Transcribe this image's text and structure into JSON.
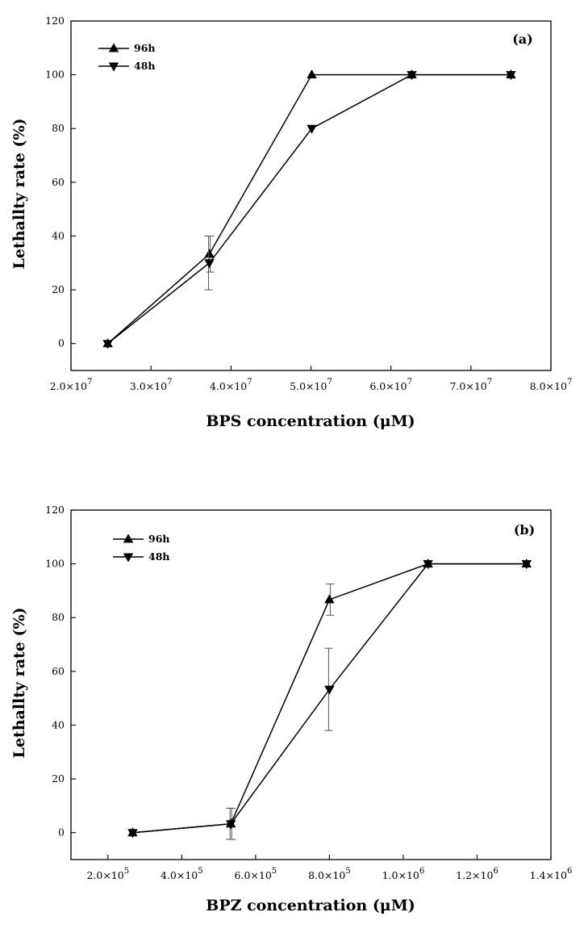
{
  "chart_data": [
    {
      "type": "line",
      "panel_label": "(a)",
      "xlabel": "BPS concentration (μM)",
      "ylabel": "Lethallty rate (%)",
      "xlim": [
        20000000,
        80000000
      ],
      "ylim": [
        -10,
        120
      ],
      "x_ticks": [
        20000000,
        30000000,
        40000000,
        50000000,
        60000000,
        70000000,
        80000000
      ],
      "x_tick_labels": [
        {
          "mantissa": "2.0×10",
          "exp": "7"
        },
        {
          "mantissa": "3.0×10",
          "exp": "7"
        },
        {
          "mantissa": "4.0×10",
          "exp": "7"
        },
        {
          "mantissa": "5.0×10",
          "exp": "7"
        },
        {
          "mantissa": "6.0×10",
          "exp": "7"
        },
        {
          "mantissa": "7.0×10",
          "exp": "7"
        },
        {
          "mantissa": "8.0×10",
          "exp": "7"
        }
      ],
      "y_ticks": [
        0,
        20,
        40,
        60,
        80,
        100,
        120
      ],
      "y_tick_labels": [
        "0",
        "20",
        "40",
        "60",
        "80",
        "100",
        "120"
      ],
      "legend_position": "top-left",
      "series": [
        {
          "name": "96h",
          "marker": "triangle-up",
          "x": [
            24600000,
            37300000,
            50100000,
            62600000,
            75000000
          ],
          "values": [
            0,
            33.3,
            100,
            100,
            100
          ],
          "errors": [
            0,
            6.7,
            0,
            0,
            0
          ]
        },
        {
          "name": "48h",
          "marker": "triangle-down",
          "x": [
            24600000,
            37300000,
            50100000,
            62600000,
            75000000
          ],
          "values": [
            0,
            30,
            80,
            100,
            100
          ],
          "errors": [
            0,
            10,
            0,
            0,
            0
          ]
        }
      ]
    },
    {
      "type": "line",
      "panel_label": "(b)",
      "xlabel": "BPZ concentration (μM)",
      "ylabel": "Lethallty rate (%)",
      "xlim": [
        100000,
        1400000
      ],
      "ylim": [
        -10,
        120
      ],
      "x_ticks": [
        200000,
        400000,
        600000,
        800000,
        1000000,
        1200000,
        1400000
      ],
      "x_tick_labels": [
        {
          "mantissa": "2.0×10",
          "exp": "5"
        },
        {
          "mantissa": "4.0×10",
          "exp": "5"
        },
        {
          "mantissa": "6.0×10",
          "exp": "5"
        },
        {
          "mantissa": "8.0×10",
          "exp": "5"
        },
        {
          "mantissa": "1.0×10",
          "exp": "6"
        },
        {
          "mantissa": "1.2×10",
          "exp": "6"
        },
        {
          "mantissa": "1.4×10",
          "exp": "6"
        }
      ],
      "y_ticks": [
        0,
        20,
        40,
        60,
        80,
        100,
        120
      ],
      "y_tick_labels": [
        "0",
        "20",
        "40",
        "60",
        "80",
        "100",
        "120"
      ],
      "legend_position": "top-left",
      "series": [
        {
          "name": "96h",
          "marker": "triangle-up",
          "x": [
            267000,
            533000,
            800000,
            1067000,
            1334000
          ],
          "values": [
            0,
            3.3,
            86.7,
            100,
            100
          ],
          "errors": [
            0,
            5.8,
            5.8,
            0,
            0
          ]
        },
        {
          "name": "48h",
          "marker": "triangle-down",
          "x": [
            267000,
            533000,
            800000,
            1067000,
            1334000
          ],
          "values": [
            0,
            3.3,
            53.3,
            100,
            100
          ],
          "errors": [
            0,
            5.8,
            15.3,
            0,
            0
          ]
        }
      ]
    }
  ]
}
